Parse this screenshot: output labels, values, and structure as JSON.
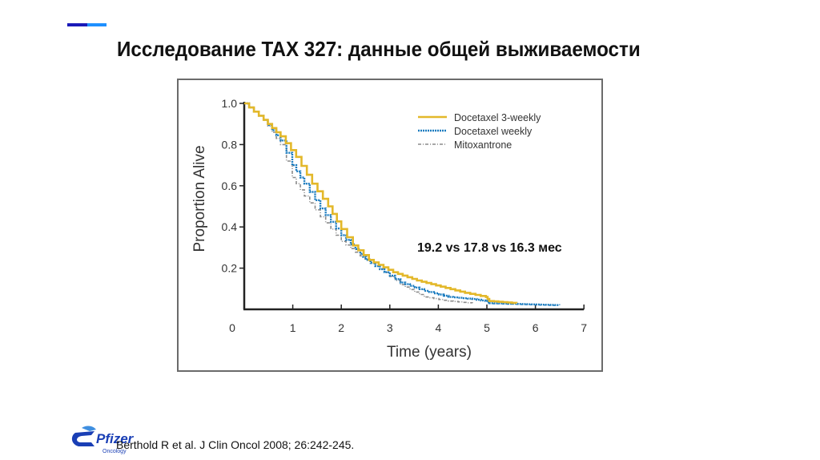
{
  "slide": {
    "title": "Исследование TAX 327: данные общей выживаемости",
    "accent_colors": [
      "#1a1ab8",
      "#1e90ff"
    ],
    "footnote": "Berthold R et al. J Clin Oncol 2008; 26:242-245.",
    "logo": {
      "name": "Pfizer",
      "sub": "Oncology",
      "color": "#1a3fb5"
    }
  },
  "annotation": "19.2 vs 17.8 vs 16.3 мес",
  "chart_data": {
    "type": "line",
    "title": "",
    "xlabel": "Time (years)",
    "ylabel": "Proportion Alive",
    "xlim": [
      0,
      7
    ],
    "ylim": [
      0,
      1.0
    ],
    "x_ticks": [
      "0",
      "1",
      "2",
      "3",
      "4",
      "5",
      "6",
      "7"
    ],
    "y_ticks": [
      "0.2",
      "0.4",
      "0.6",
      "0.8",
      "1.0"
    ],
    "grid": false,
    "legend_position": "upper right",
    "annotation": "19.2 vs 17.8 vs 16.3 мес",
    "series": [
      {
        "name": "Docetaxel 3-weekly",
        "color": "#e3b82a",
        "style": "solid",
        "x": [
          0,
          0.4,
          0.75,
          1.07,
          1.4,
          1.73,
          2.0,
          2.24,
          2.57,
          3.07,
          3.56,
          4.05,
          4.55,
          4.98,
          5.05,
          5.61
        ],
        "y": [
          1.0,
          0.92,
          0.84,
          0.74,
          0.61,
          0.5,
          0.39,
          0.31,
          0.24,
          0.18,
          0.14,
          0.11,
          0.08,
          0.06,
          0.04,
          0.03
        ]
      },
      {
        "name": "Docetaxel weekly",
        "color": "#1a7bbf",
        "style": "dotted-thick",
        "x": [
          0,
          0.4,
          0.75,
          0.99,
          1.24,
          1.57,
          2.0,
          2.39,
          2.51,
          2.89,
          3.22,
          3.71,
          4.21,
          4.7,
          4.97,
          5.05,
          6.49
        ],
        "y": [
          1.0,
          0.92,
          0.82,
          0.7,
          0.61,
          0.49,
          0.36,
          0.27,
          0.24,
          0.18,
          0.13,
          0.09,
          0.06,
          0.05,
          0.04,
          0.03,
          0.02
        ]
      },
      {
        "name": "Mitoxantrone",
        "color": "#8a8a8a",
        "style": "dash-dot",
        "x": [
          0,
          0.4,
          0.75,
          0.99,
          1.24,
          1.57,
          2.0,
          2.39,
          2.89,
          3.22,
          3.71,
          4.21,
          4.7
        ],
        "y": [
          1.0,
          0.92,
          0.8,
          0.64,
          0.55,
          0.45,
          0.33,
          0.26,
          0.18,
          0.12,
          0.06,
          0.04,
          0.03
        ]
      }
    ]
  }
}
